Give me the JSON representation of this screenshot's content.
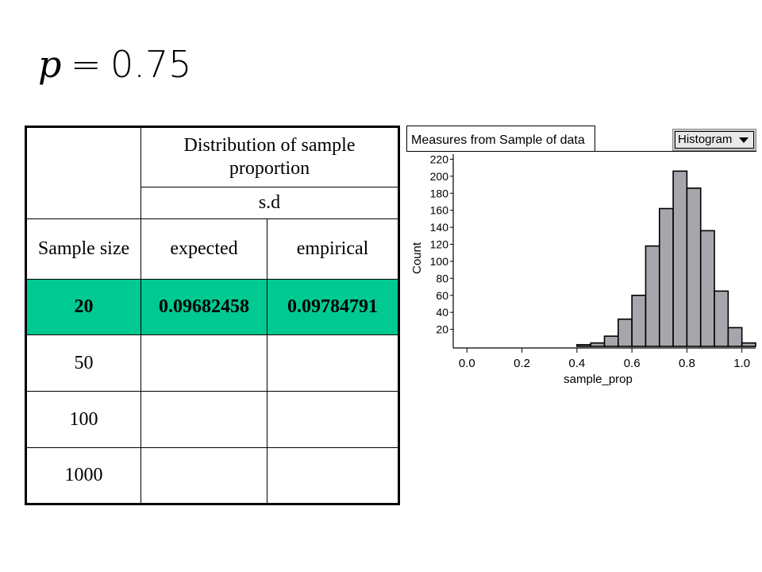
{
  "formula": {
    "variable": "p",
    "equals": "=",
    "value": "0.75"
  },
  "table": {
    "header": {
      "group_label": "Distribution of sample proportion",
      "sub_label": "s.d"
    },
    "columns": [
      "Sample size",
      "expected",
      "empirical"
    ],
    "rows": [
      {
        "size": "20",
        "expected": "0.09682458",
        "empirical": "0.09784791",
        "highlighted": true
      },
      {
        "size": "50",
        "expected": "",
        "empirical": ""
      },
      {
        "size": "100",
        "expected": "",
        "empirical": ""
      },
      {
        "size": "1000",
        "expected": "",
        "empirical": ""
      }
    ],
    "highlight_color": "#00c991"
  },
  "histogram_window": {
    "title": "Measures from Sample of data",
    "plot_type_selector": "Histogram"
  },
  "chart_data": {
    "type": "bar",
    "bins": [
      {
        "x0": 0.4,
        "x1": 0.45,
        "count": 2
      },
      {
        "x0": 0.45,
        "x1": 0.5,
        "count": 4
      },
      {
        "x0": 0.5,
        "x1": 0.55,
        "count": 12
      },
      {
        "x0": 0.55,
        "x1": 0.6,
        "count": 32
      },
      {
        "x0": 0.6,
        "x1": 0.65,
        "count": 60
      },
      {
        "x0": 0.65,
        "x1": 0.7,
        "count": 118
      },
      {
        "x0": 0.7,
        "x1": 0.75,
        "count": 162
      },
      {
        "x0": 0.75,
        "x1": 0.8,
        "count": 206
      },
      {
        "x0": 0.8,
        "x1": 0.85,
        "count": 186
      },
      {
        "x0": 0.85,
        "x1": 0.9,
        "count": 136
      },
      {
        "x0": 0.9,
        "x1": 0.95,
        "count": 65
      },
      {
        "x0": 0.95,
        "x1": 1.0,
        "count": 22
      },
      {
        "x0": 1.0,
        "x1": 1.05,
        "count": 4
      }
    ],
    "xlabel": "sample_prop",
    "ylabel": "Count",
    "xlim": [
      -0.05,
      1.05
    ],
    "ylim": [
      0,
      226
    ],
    "xticks": [
      "0.0",
      "0.2",
      "0.4",
      "0.6",
      "0.8",
      "1.0"
    ],
    "yticks": [
      "20",
      "40",
      "60",
      "80",
      "100",
      "120",
      "140",
      "160",
      "180",
      "200",
      "220"
    ],
    "bar_color": "#a6a6ad",
    "grid": false,
    "legend": "none"
  }
}
